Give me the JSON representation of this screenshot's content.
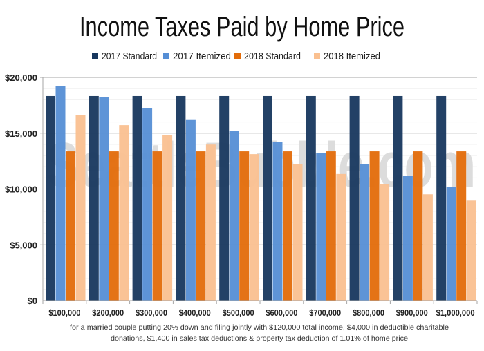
{
  "chart_data": {
    "type": "bar",
    "title": "Income Taxes Paid by Home Price",
    "categories": [
      "$100,000",
      "$200,000",
      "$300,000",
      "$400,000",
      "$500,000",
      "$600,000",
      "$700,000",
      "$800,000",
      "$900,000",
      "$1,000,000"
    ],
    "series": [
      {
        "name": "2017 Standard",
        "color": "#17375e",
        "values": [
          18330,
          18330,
          18330,
          18330,
          18330,
          18330,
          18330,
          18330,
          18330,
          18330
        ]
      },
      {
        "name": "2017 Itemized",
        "color": "#558ed5",
        "values": [
          19250,
          18250,
          17260,
          16240,
          15230,
          14200,
          13200,
          12200,
          11200,
          10200
        ]
      },
      {
        "name": "2018 Standard",
        "color": "#e36c09",
        "values": [
          13370,
          13370,
          13370,
          13370,
          13370,
          13370,
          13370,
          13370,
          13370,
          13370
        ]
      },
      {
        "name": "2018 Itemized",
        "color": "#fac090",
        "values": [
          16620,
          15720,
          14850,
          13980,
          13120,
          12230,
          11340,
          10460,
          9520,
          8960
        ]
      }
    ],
    "ylim": [
      0,
      20000
    ],
    "yticks": [
      "$0",
      "$5,000",
      "$10,000",
      "$15,000",
      "$20,000"
    ],
    "grid": true,
    "legend": "top",
    "xlabel": "",
    "ylabel": "",
    "note_lines": [
      "for a married  couple putting 20% down and filing  jointly with $120,000  total income, $4,000  in deductible charitable",
      "donations, $1,400  in sales  tax deductions  & property tax deduction  of 1.01%  of home price"
    ]
  },
  "watermark": "SeattleBubble.com"
}
